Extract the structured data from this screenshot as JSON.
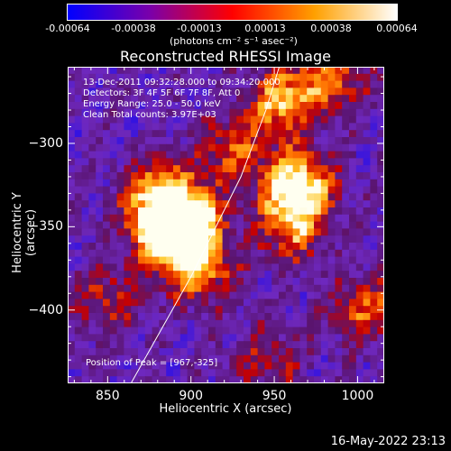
{
  "colorbar": {
    "ticks": [
      "-0.00064",
      "-0.00038",
      "-0.00013",
      "0.00013",
      "0.00038",
      "0.00064"
    ],
    "unit": "(photons cm⁻² s⁻¹ asec⁻²)",
    "colors": [
      "#0000ff",
      "#7a00aa",
      "#ff0000",
      "#ffa000",
      "#ffffff"
    ]
  },
  "info": {
    "time": "13-Dec-2011 09:32:28.000 to 09:34:20.000",
    "detectors": "Detectors: 3F 4F 5F 6F 7F 8F, Att 0",
    "energy": "Energy Range: 25.0 - 50.0 keV",
    "method": "Clean     Total counts: 3.97E+03",
    "peak": "Position of Peak = [967,-325]"
  },
  "footer": "16-May-2022 23:13",
  "chart_data": {
    "type": "heatmap",
    "title": "Reconstructed RHESSI Image",
    "xlabel": "Heliocentric X (arcsec)",
    "ylabel": "Heliocentric Y (arcsec)",
    "xlim": [
      826,
      1016
    ],
    "ylim": [
      -444,
      -254
    ],
    "xticks": [
      "850",
      "900",
      "950",
      "1000"
    ],
    "yticks": [
      "−300",
      "−350",
      "−400"
    ],
    "xtick_values": [
      850,
      900,
      950,
      1000
    ],
    "ytick_values": [
      -300,
      -350,
      -400
    ],
    "limb": [
      [
        864,
        -444
      ],
      [
        900,
        -380
      ],
      [
        930,
        -320
      ],
      [
        945,
        -280
      ],
      [
        953,
        -254
      ]
    ],
    "sources": [
      {
        "x": 885,
        "y": -355,
        "strength": 1.0
      },
      {
        "x": 900,
        "y": -345,
        "strength": 0.8
      },
      {
        "x": 880,
        "y": -330,
        "strength": 0.7
      },
      {
        "x": 905,
        "y": -375,
        "strength": 0.65
      },
      {
        "x": 965,
        "y": -325,
        "strength": 0.95
      },
      {
        "x": 960,
        "y": -350,
        "strength": 0.6
      },
      {
        "x": 955,
        "y": -275,
        "strength": 0.7
      },
      {
        "x": 985,
        "y": -260,
        "strength": 0.55
      },
      {
        "x": 1005,
        "y": -400,
        "strength": 0.5
      },
      {
        "x": 925,
        "y": -305,
        "strength": 0.5
      },
      {
        "x": 850,
        "y": -395,
        "strength": 0.4
      },
      {
        "x": 945,
        "y": -430,
        "strength": 0.35
      }
    ]
  }
}
